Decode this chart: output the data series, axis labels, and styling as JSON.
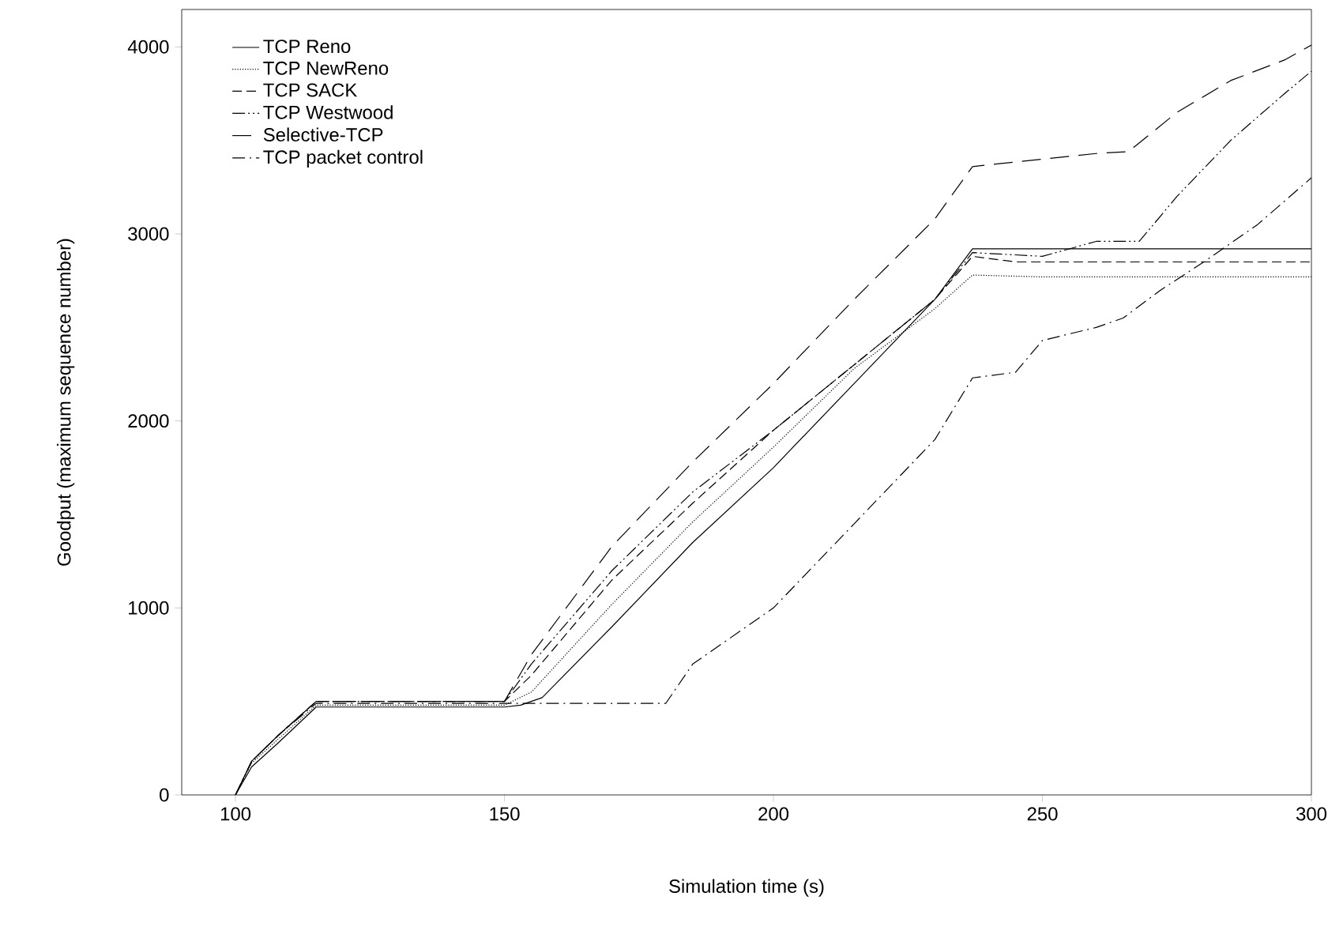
{
  "chart_data": {
    "type": "line",
    "xlabel": "Simulation time (s)",
    "ylabel": "Goodput (maximum sequence number)",
    "xlim": [
      90,
      300
    ],
    "ylim": [
      0,
      4200
    ],
    "xticks": [
      100,
      150,
      200,
      250,
      300
    ],
    "yticks": [
      0,
      1000,
      2000,
      3000,
      4000
    ],
    "legend": "top left",
    "grid": false,
    "marker": "none",
    "series": [
      {
        "name": "TCP Reno",
        "color": "#000000",
        "line_style": "solid",
        "x": [
          100,
          103,
          108,
          115,
          150,
          153,
          157,
          170,
          185,
          200,
          215,
          230,
          237,
          250,
          300
        ],
        "values": [
          0,
          150,
          280,
          470,
          470,
          480,
          520,
          900,
          1350,
          1750,
          2200,
          2650,
          2920,
          2920,
          2920
        ]
      },
      {
        "name": "TCP NewReno",
        "color": "#000000",
        "line_style": "dotted",
        "x": [
          100,
          103,
          108,
          115,
          150,
          155,
          170,
          185,
          200,
          215,
          230,
          237,
          250,
          300
        ],
        "values": [
          0,
          170,
          300,
          480,
          480,
          550,
          1020,
          1460,
          1860,
          2280,
          2600,
          2780,
          2770,
          2770
        ]
      },
      {
        "name": "TCP SACK",
        "color": "#000000",
        "line_style": "dashed",
        "x": [
          100,
          103,
          108,
          115,
          150,
          155,
          170,
          185,
          200,
          215,
          230,
          237,
          245,
          300
        ],
        "values": [
          0,
          180,
          320,
          500,
          500,
          640,
          1150,
          1560,
          1950,
          2300,
          2650,
          2880,
          2850,
          2850
        ]
      },
      {
        "name": "TCP Westwood",
        "color": "#000000",
        "line_style": "dashdotdot",
        "x": [
          100,
          103,
          108,
          115,
          150,
          155,
          170,
          185,
          200,
          215,
          230,
          237,
          250,
          260,
          268,
          275,
          285,
          295,
          300
        ],
        "values": [
          0,
          180,
          320,
          500,
          500,
          700,
          1200,
          1620,
          1950,
          2300,
          2650,
          2900,
          2880,
          2960,
          2960,
          3200,
          3500,
          3750,
          3870
        ]
      },
      {
        "name": "Selective-TCP",
        "color": "#000000",
        "line_style": "longdash",
        "x": [
          100,
          103,
          108,
          115,
          150,
          155,
          170,
          185,
          200,
          215,
          230,
          237,
          250,
          260,
          266,
          275,
          285,
          295,
          300
        ],
        "values": [
          0,
          180,
          320,
          500,
          500,
          750,
          1330,
          1780,
          2200,
          2650,
          3080,
          3360,
          3400,
          3430,
          3440,
          3650,
          3820,
          3930,
          4010
        ]
      },
      {
        "name": "TCP packet control",
        "color": "#000000",
        "line_style": "dashdot",
        "x": [
          100,
          103,
          108,
          115,
          150,
          160,
          180,
          185,
          200,
          215,
          230,
          237,
          245,
          250,
          260,
          265,
          272,
          280,
          290,
          300
        ],
        "values": [
          0,
          180,
          320,
          490,
          490,
          490,
          490,
          700,
          1000,
          1450,
          1900,
          2230,
          2260,
          2430,
          2500,
          2550,
          2700,
          2850,
          3050,
          3300
        ]
      }
    ]
  }
}
